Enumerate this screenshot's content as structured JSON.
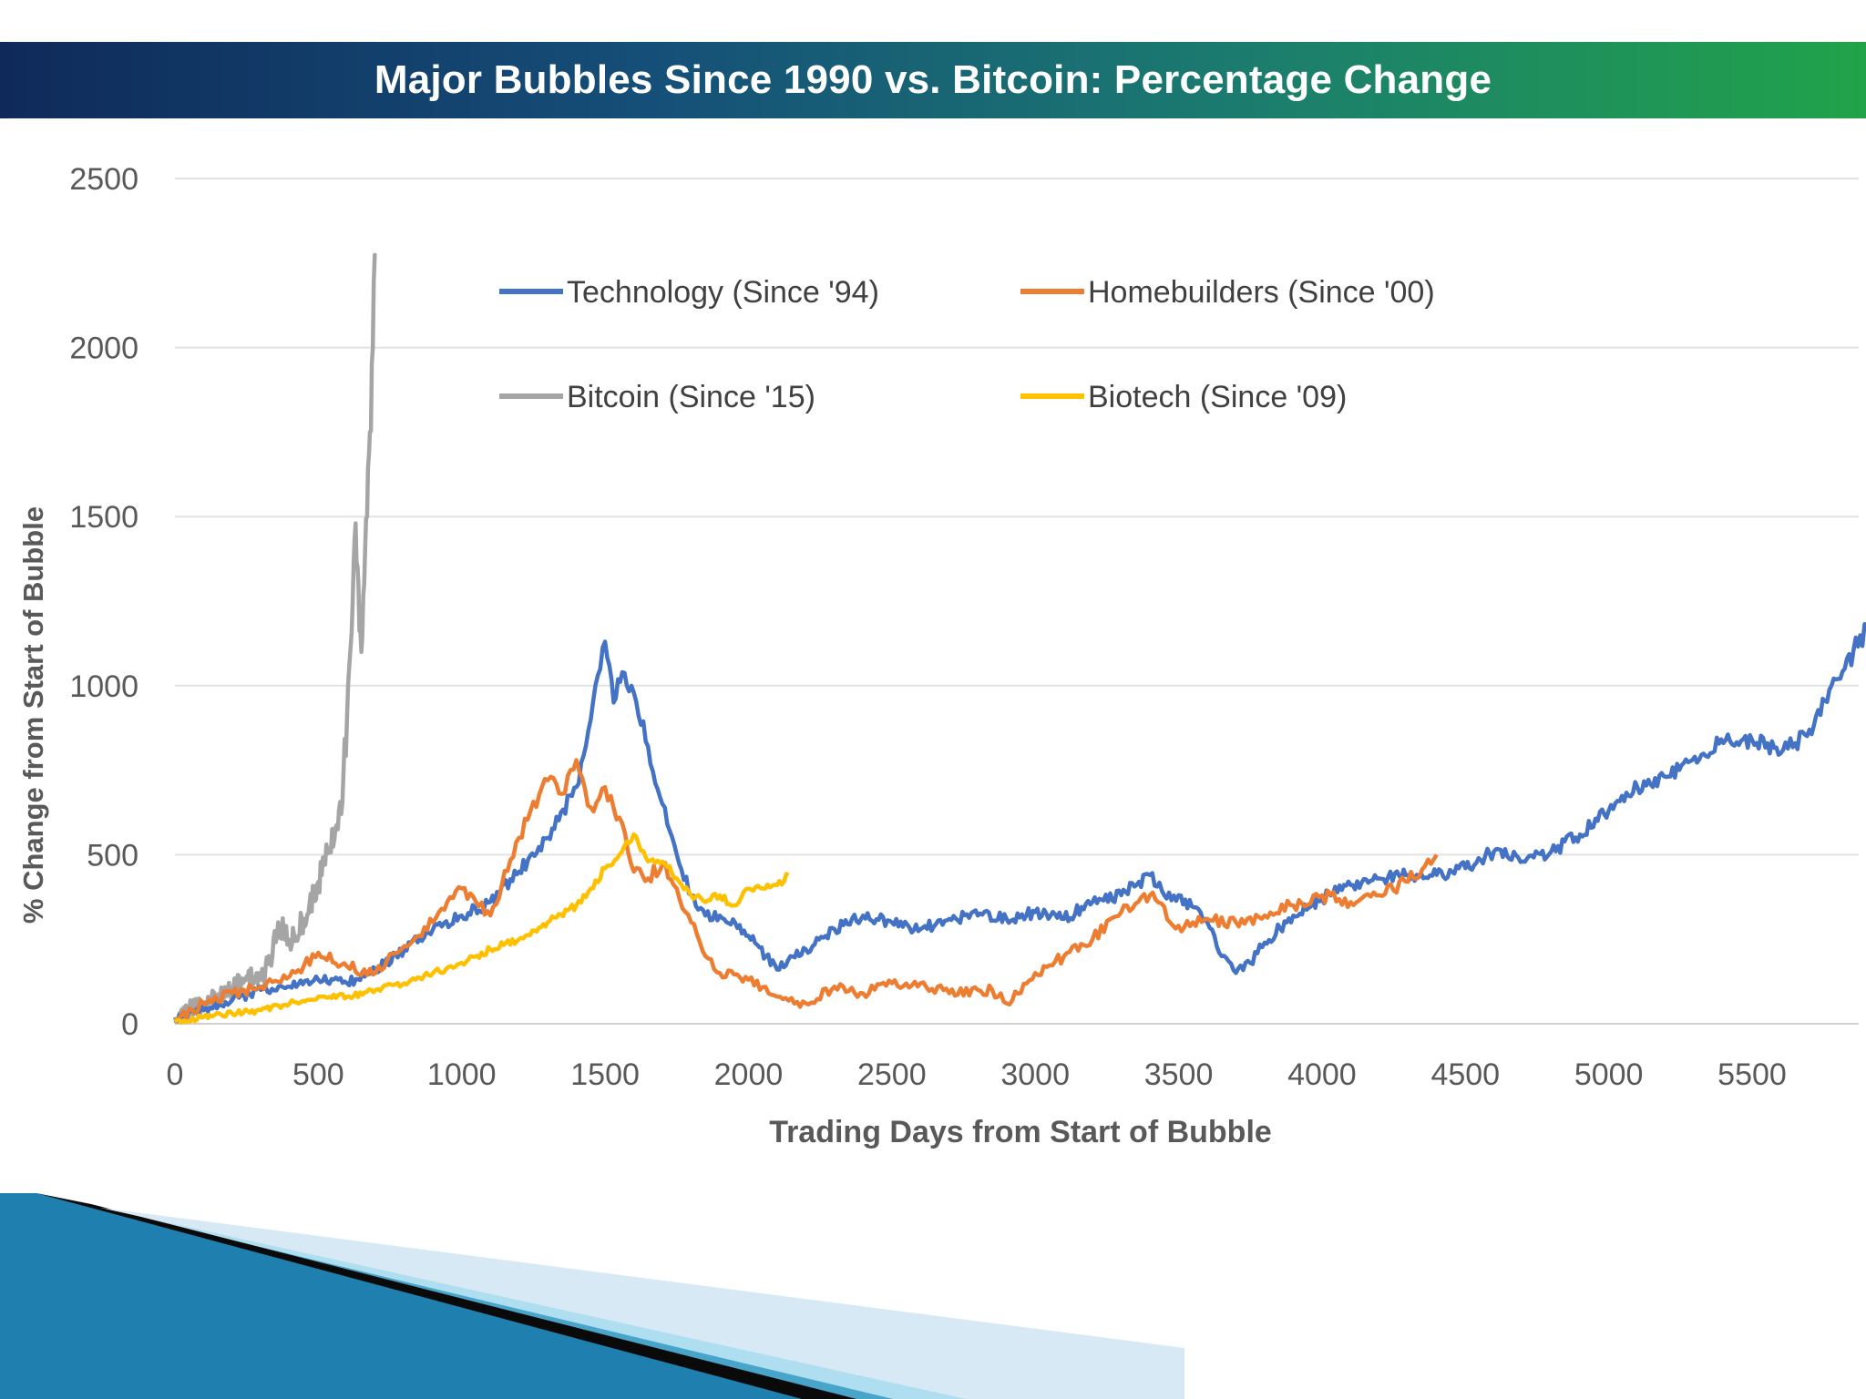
{
  "chart_data": {
    "type": "line",
    "title": "Major Bubbles Since 1990 vs. Bitcoin: Percentage Change",
    "xlabel": "Trading Days from Start of Bubble",
    "ylabel": "% Change from Start of Bubble",
    "xlim": [
      0,
      5900
    ],
    "ylim": [
      0,
      2500
    ],
    "x_ticks": [
      0,
      500,
      1000,
      1500,
      2000,
      2500,
      3000,
      3500,
      4000,
      4500,
      5000,
      5500
    ],
    "y_ticks": [
      0,
      500,
      1000,
      1500,
      2000,
      2500
    ],
    "grid": true,
    "legend_position": "top-center",
    "series": [
      {
        "name": "Technology (Since '94)",
        "color": "#4472C4",
        "x": [
          0,
          100,
          200,
          300,
          400,
          500,
          600,
          700,
          800,
          900,
          1000,
          1100,
          1200,
          1300,
          1400,
          1450,
          1500,
          1530,
          1560,
          1600,
          1650,
          1700,
          1750,
          1800,
          1850,
          1900,
          2000,
          2100,
          2200,
          2300,
          2400,
          2500,
          2600,
          2700,
          2800,
          2900,
          3000,
          3100,
          3200,
          3300,
          3400,
          3450,
          3500,
          3600,
          3650,
          3700,
          3750,
          3800,
          3900,
          4000,
          4100,
          4200,
          4300,
          4400,
          4500,
          4600,
          4700,
          4800,
          4900,
          5000,
          5100,
          5200,
          5300,
          5400,
          5500,
          5600,
          5650,
          5700,
          5800,
          5900
        ],
        "values": [
          10,
          40,
          70,
          100,
          110,
          130,
          120,
          160,
          220,
          280,
          320,
          360,
          450,
          550,
          700,
          900,
          1130,
          950,
          1040,
          980,
          820,
          650,
          500,
          380,
          320,
          320,
          260,
          160,
          220,
          280,
          320,
          300,
          280,
          310,
          320,
          310,
          330,
          310,
          360,
          380,
          440,
          380,
          380,
          300,
          200,
          150,
          180,
          240,
          320,
          370,
          410,
          430,
          440,
          440,
          460,
          510,
          480,
          510,
          560,
          630,
          700,
          730,
          790,
          830,
          840,
          800,
          830,
          870,
          1020,
          1170
        ]
      },
      {
        "name": "Homebuilders (Since '00)",
        "color": "#ED7D31",
        "x": [
          0,
          100,
          200,
          300,
          400,
          500,
          600,
          700,
          800,
          900,
          1000,
          1050,
          1100,
          1200,
          1300,
          1350,
          1400,
          1450,
          1500,
          1550,
          1600,
          1650,
          1700,
          1750,
          1800,
          1850,
          1900,
          2000,
          2100,
          2200,
          2300,
          2400,
          2500,
          2600,
          2700,
          2800,
          2850,
          2900,
          3000,
          3100,
          3200,
          3300,
          3400,
          3500,
          3600,
          3700,
          3800,
          3900,
          4000,
          4100,
          4200,
          4300,
          4400
        ],
        "values": [
          10,
          60,
          90,
          110,
          140,
          210,
          170,
          150,
          230,
          300,
          400,
          360,
          320,
          550,
          720,
          680,
          780,
          640,
          700,
          610,
          450,
          430,
          470,
          400,
          300,
          200,
          150,
          130,
          80,
          60,
          110,
          90,
          120,
          120,
          90,
          100,
          100,
          60,
          150,
          200,
          250,
          330,
          380,
          290,
          310,
          300,
          320,
          350,
          380,
          360,
          380,
          420,
          500
        ]
      },
      {
        "name": "Bitcoin (Since '15)",
        "color": "#A5A5A5",
        "x": [
          0,
          50,
          100,
          150,
          200,
          250,
          300,
          340,
          360,
          400,
          450,
          500,
          520,
          540,
          560,
          580,
          600,
          620,
          630,
          640,
          650,
          660,
          670,
          680,
          690,
          700
        ],
        "values": [
          20,
          40,
          60,
          80,
          100,
          140,
          130,
          200,
          300,
          240,
          310,
          420,
          470,
          520,
          580,
          620,
          900,
          1250,
          1480,
          1300,
          1100,
          1300,
          1500,
          1750,
          2000,
          2270
        ]
      },
      {
        "name": "Biotech (Since '09)",
        "color": "#FFC000",
        "x": [
          0,
          100,
          200,
          300,
          400,
          500,
          600,
          700,
          800,
          900,
          1000,
          1100,
          1200,
          1300,
          1400,
          1450,
          1500,
          1550,
          1600,
          1650,
          1700,
          1750,
          1800,
          1850,
          1900,
          1950,
          2000,
          2050,
          2100,
          2140
        ],
        "values": [
          5,
          20,
          30,
          40,
          60,
          80,
          80,
          100,
          120,
          150,
          180,
          220,
          250,
          300,
          350,
          400,
          460,
          500,
          560,
          480,
          480,
          430,
          380,
          360,
          380,
          350,
          400,
          400,
          410,
          440
        ]
      }
    ]
  }
}
